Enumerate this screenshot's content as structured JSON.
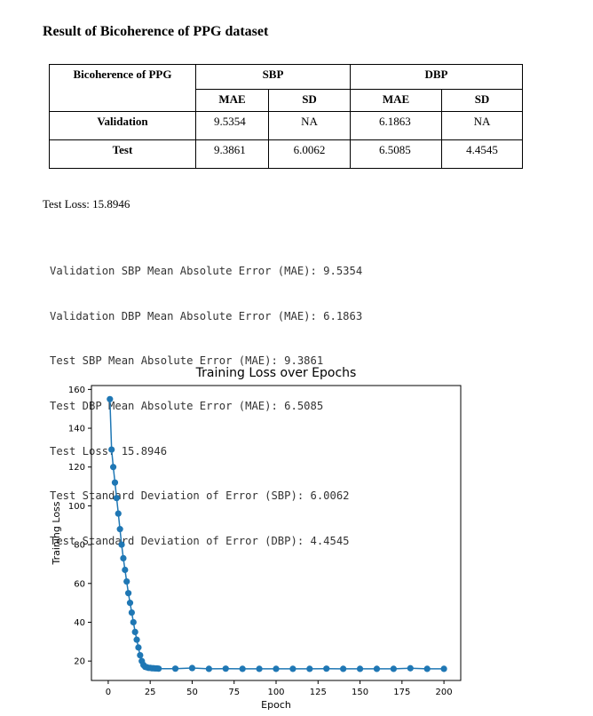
{
  "document": {
    "title": "Result of Bicoherence of PPG dataset",
    "test_loss_line": "Test Loss: 15.8946"
  },
  "table": {
    "row_header": "Bicoherence of PPG",
    "groups": [
      "SBP",
      "DBP"
    ],
    "subheaders": [
      "MAE",
      "SD",
      "MAE",
      "SD"
    ],
    "rows": [
      {
        "label": "Validation",
        "values": [
          "9.5354",
          "NA",
          "6.1863",
          "NA"
        ]
      },
      {
        "label": "Test",
        "values": [
          "9.3861",
          "6.0062",
          "6.5085",
          "4.4545"
        ]
      }
    ]
  },
  "console_lines": [
    "Validation SBP Mean Absolute Error (MAE): 9.5354",
    "Validation DBP Mean Absolute Error (MAE): 6.1863",
    "Test SBP Mean Absolute Error (MAE): 9.3861",
    "Test DBP Mean Absolute Error (MAE): 6.5085",
    "Test Loss: 15.8946",
    "Test Standard Deviation of Error (SBP): 6.0062",
    "Test Standard Deviation of Error (DBP): 4.4545"
  ],
  "chart_data": {
    "type": "line",
    "title": "Training Loss over Epochs",
    "xlabel": "Epoch",
    "ylabel": "Training Loss",
    "xlim": [
      -10,
      210
    ],
    "ylim": [
      10,
      162
    ],
    "xticks": [
      0,
      25,
      50,
      75,
      100,
      125,
      150,
      175,
      200
    ],
    "yticks": [
      20,
      40,
      60,
      80,
      100,
      120,
      140,
      160
    ],
    "grid": false,
    "marker": "circle",
    "color": "#1f77b4",
    "series": [
      {
        "x": [
          1,
          2,
          3,
          4,
          5,
          6,
          7,
          8,
          9,
          10,
          11,
          12,
          13,
          14,
          15,
          16,
          17,
          18,
          19,
          20,
          21,
          22,
          23,
          24,
          25,
          26,
          27,
          28,
          29,
          30,
          40,
          50,
          60,
          70,
          80,
          90,
          100,
          110,
          120,
          130,
          140,
          150,
          160,
          170,
          180,
          190,
          200
        ],
        "y": [
          155,
          129,
          120,
          112,
          104,
          96,
          88,
          80,
          73,
          67,
          61,
          55,
          50,
          45,
          40,
          35,
          31,
          27,
          23,
          20,
          18,
          17,
          16.8,
          16.5,
          16.5,
          16.3,
          16.3,
          16.2,
          16.2,
          16.1,
          16.1,
          16.4,
          16.0,
          16.1,
          16.0,
          16.0,
          16.0,
          16.0,
          16.0,
          16.1,
          16.0,
          16.0,
          16.0,
          16.0,
          16.3,
          16.0,
          16.0
        ]
      }
    ]
  }
}
